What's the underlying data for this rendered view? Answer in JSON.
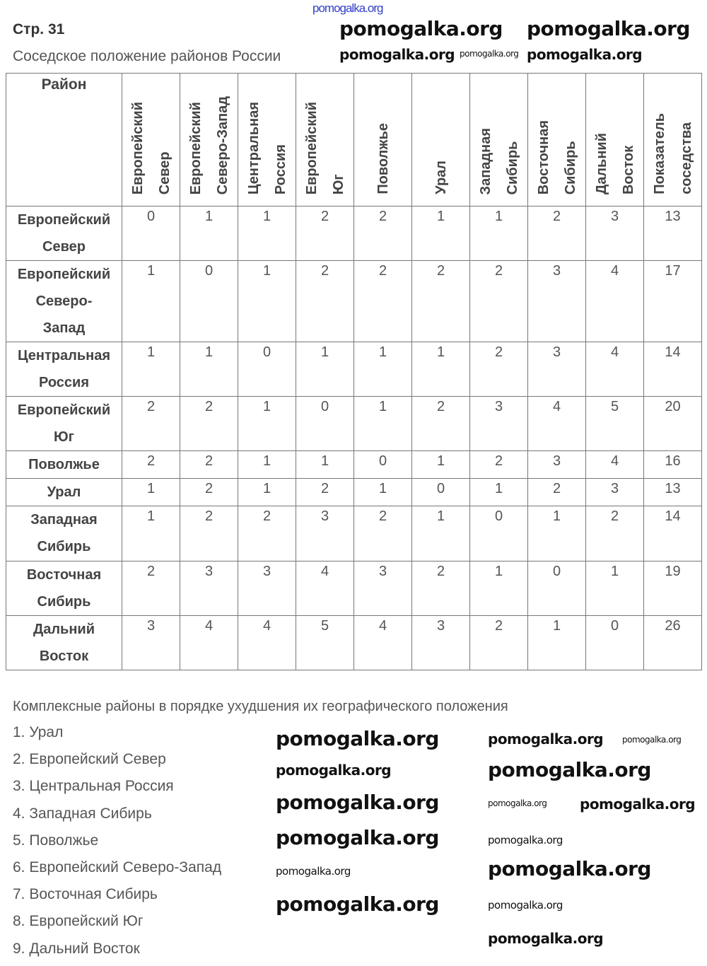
{
  "watermark": "pomogalka.org",
  "page_number": "Стр. 31",
  "table_title": "Соседское положение районов России",
  "table": {
    "corner_header": "Район",
    "columns": [
      [
        "Европейский",
        "Север"
      ],
      [
        "Европейский",
        "Северо-Запад"
      ],
      [
        "Центральная",
        "Россия"
      ],
      [
        "Европейский",
        "Юг"
      ],
      [
        "Поволжье"
      ],
      [
        "Урал"
      ],
      [
        "Западная",
        "Сибирь"
      ],
      [
        "Восточная",
        "Сибирь"
      ],
      [
        "Дальний",
        "Восток"
      ],
      [
        "Показатель",
        "соседства"
      ]
    ],
    "rows": [
      {
        "label": [
          "Европейский",
          "Север"
        ],
        "values": [
          0,
          1,
          1,
          2,
          2,
          1,
          1,
          2,
          3,
          13
        ]
      },
      {
        "label": [
          "Европейский",
          "Северо-",
          "Запад"
        ],
        "values": [
          1,
          0,
          1,
          2,
          2,
          2,
          2,
          3,
          4,
          17
        ]
      },
      {
        "label": [
          "Центральная",
          "Россия"
        ],
        "values": [
          1,
          1,
          0,
          1,
          1,
          1,
          2,
          3,
          4,
          14
        ]
      },
      {
        "label": [
          "Европейский",
          "Юг"
        ],
        "values": [
          2,
          2,
          1,
          0,
          1,
          2,
          3,
          4,
          5,
          20
        ]
      },
      {
        "label": [
          "Поволжье"
        ],
        "values": [
          2,
          2,
          1,
          1,
          0,
          1,
          2,
          3,
          4,
          16
        ]
      },
      {
        "label": [
          "Урал"
        ],
        "values": [
          1,
          2,
          1,
          2,
          1,
          0,
          1,
          2,
          3,
          13
        ]
      },
      {
        "label": [
          "Западная",
          "Сибирь"
        ],
        "values": [
          1,
          2,
          2,
          3,
          2,
          1,
          0,
          1,
          2,
          14
        ]
      },
      {
        "label": [
          "Восточная",
          "Сибирь"
        ],
        "values": [
          2,
          3,
          3,
          4,
          3,
          2,
          1,
          0,
          1,
          19
        ]
      },
      {
        "label": [
          "Дальний",
          "Восток"
        ],
        "values": [
          3,
          4,
          4,
          5,
          4,
          3,
          2,
          1,
          0,
          26
        ]
      }
    ]
  },
  "ranking_title": "Комплексные районы в порядке ухудшения их географического положения",
  "ranking": [
    "1. Урал",
    "2. Европейский Север",
    "3. Центральная Россия",
    "4. Западная Сибирь",
    "5. Поволжье",
    "6. Европейский Северо-Запад",
    "7. Восточная Сибирь",
    "8. Европейский Юг",
    "9. Дальний Восток"
  ]
}
